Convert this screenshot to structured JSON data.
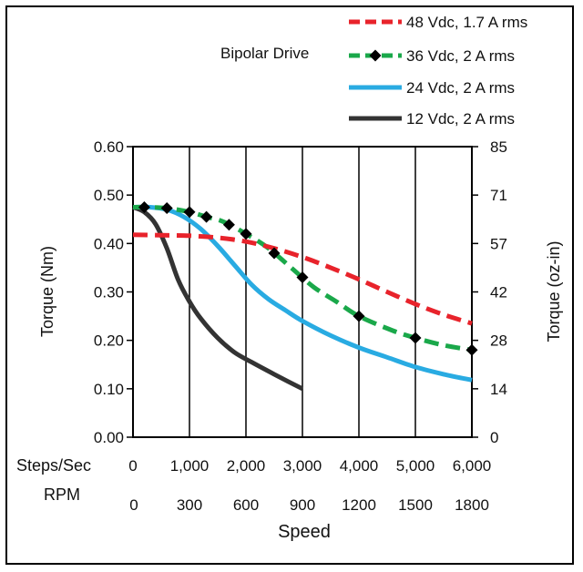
{
  "chart_data": {
    "type": "line",
    "annotation": "Bipolar Drive",
    "xlabel": "Speed",
    "ylabel_left": "Torque (Nm)",
    "ylabel_right": "Torque (oz-in)",
    "x_axis_rows": [
      {
        "label": "Steps/Sec",
        "ticks": [
          "0",
          "1,000",
          "2,000",
          "3,000",
          "4,000",
          "5,000",
          "6,000"
        ]
      },
      {
        "label": "RPM",
        "ticks": [
          "0",
          "300",
          "600",
          "900",
          "1200",
          "1500",
          "1800"
        ]
      }
    ],
    "xlim": [
      0,
      6000
    ],
    "ylim": [
      0,
      0.6
    ],
    "yticks_left": [
      "0.00",
      "0.10",
      "0.20",
      "0.30",
      "0.40",
      "0.50",
      "0.60"
    ],
    "yticks_right": [
      "0",
      "14",
      "28",
      "42",
      "57",
      "71",
      "85"
    ],
    "grid": "vertical",
    "legend_position": "top-right",
    "series": [
      {
        "name": "48 Vdc, 1.7 A rms",
        "color": "#e8232b",
        "style": "dashed",
        "marker": "none",
        "x": [
          0,
          500,
          1000,
          1500,
          2000,
          2500,
          3000,
          3500,
          4000,
          4500,
          5000,
          5500,
          6000
        ],
        "y": [
          0.418,
          0.417,
          0.416,
          0.412,
          0.404,
          0.39,
          0.372,
          0.35,
          0.326,
          0.3,
          0.275,
          0.253,
          0.235
        ]
      },
      {
        "name": "36 Vdc, 2 A rms",
        "color": "#1aa84a",
        "style": "dashed",
        "marker": "diamond",
        "x": [
          0,
          200,
          600,
          1000,
          1300,
          1600,
          2000,
          2400,
          2800,
          3200,
          3600,
          4000,
          4600,
          5000,
          5500,
          6000
        ],
        "y": [
          0.475,
          0.475,
          0.473,
          0.465,
          0.455,
          0.445,
          0.42,
          0.39,
          0.35,
          0.31,
          0.28,
          0.25,
          0.22,
          0.205,
          0.19,
          0.18
        ]
      },
      {
        "name": "24 Vdc, 2 A rms",
        "color": "#29abe2",
        "style": "solid",
        "marker": "none",
        "x": [
          0,
          300,
          600,
          900,
          1200,
          1500,
          1800,
          2100,
          2400,
          2700,
          3000,
          3500,
          4000,
          4500,
          5000,
          5500,
          6000
        ],
        "y": [
          0.475,
          0.475,
          0.47,
          0.455,
          0.43,
          0.395,
          0.355,
          0.315,
          0.285,
          0.262,
          0.24,
          0.21,
          0.185,
          0.165,
          0.145,
          0.13,
          0.118
        ]
      },
      {
        "name": "12 Vdc, 2 A rms",
        "color": "#333333",
        "style": "solid",
        "marker": "none",
        "x": [
          0,
          200,
          400,
          600,
          800,
          1000,
          1200,
          1500,
          1800,
          2100,
          2500,
          3000
        ],
        "y": [
          0.475,
          0.465,
          0.44,
          0.39,
          0.325,
          0.28,
          0.245,
          0.205,
          0.175,
          0.155,
          0.13,
          0.1
        ]
      }
    ]
  }
}
